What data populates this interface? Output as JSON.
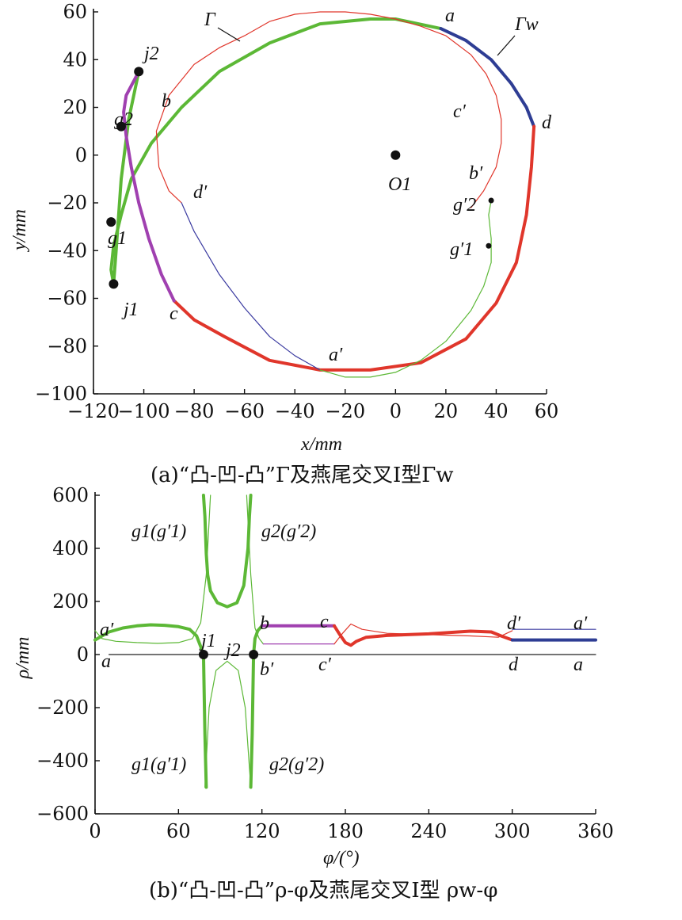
{
  "charts": {
    "a": {
      "caption": "(a)“凸-凹-凸”Γ及燕尾交叉Ⅰ型Γw",
      "xlabel": "x/mm",
      "ylabel": "y/mm",
      "xticks": [
        "−120",
        "−100",
        "−80",
        "−60",
        "−40",
        "−20",
        "0",
        "20",
        "40",
        "60"
      ],
      "yticks": [
        "60",
        "40",
        "20",
        "0",
        "−20",
        "−40",
        "−60",
        "−80",
        "−100"
      ]
    },
    "b": {
      "caption": "(b)“凸-凹-凸”ρ-φ及燕尾交叉Ⅰ型 ρw-φ",
      "xlabel": "φ/(°)",
      "ylabel": "ρ/mm",
      "xticks": [
        "0",
        "60",
        "120",
        "180",
        "240",
        "300",
        "360"
      ],
      "yticks": [
        "600",
        "400",
        "200",
        "0",
        "−200",
        "−400",
        "−600"
      ]
    }
  },
  "chart_data": [
    {
      "type": "line",
      "title": "",
      "xlabel": "x/mm",
      "ylabel": "y/mm",
      "xlim": [
        -120,
        60
      ],
      "ylim": [
        -100,
        60
      ],
      "colors": {
        "green": "#5cb836",
        "blue": "#2e3d94",
        "red": "#e0362b",
        "purple": "#a040b0",
        "thin_red": "#e0362b",
        "thin_blue": "#3a3aa0"
      },
      "annotations": [
        "Γ",
        "Γw",
        "a",
        "d",
        "c′",
        "b′",
        "g′2",
        "g′1",
        "O1",
        "d′",
        "a′",
        "c",
        "b",
        "j2",
        "g2",
        "g1",
        "j1"
      ],
      "points": [
        {
          "name": "O1",
          "x": 0,
          "y": 0
        },
        {
          "name": "j2",
          "x": -102,
          "y": 35
        },
        {
          "name": "g2",
          "x": -109,
          "y": 12
        },
        {
          "name": "g1",
          "x": -113,
          "y": -28
        },
        {
          "name": "j1",
          "x": -112,
          "y": -54
        },
        {
          "name": "g′2",
          "x": 38,
          "y": -19
        },
        {
          "name": "g′1",
          "x": 37,
          "y": -38
        }
      ],
      "series": [
        {
          "role": "Γw green (a→a′ through j2/j1 cusps)",
          "color": "green",
          "x": [
            18,
            0,
            -10,
            -30,
            -50,
            -70,
            -85,
            -97,
            -105,
            -109,
            -112,
            -113,
            -112,
            -111,
            -109,
            -106,
            -102
          ],
          "y": [
            53,
            57,
            57,
            55,
            47,
            35,
            20,
            5,
            -10,
            -25,
            -38,
            -48,
            -54,
            -40,
            -10,
            15,
            35
          ]
        },
        {
          "role": "Γw blue (a→d)",
          "color": "blue",
          "x": [
            18,
            28,
            38,
            46,
            52,
            55
          ],
          "y": [
            53,
            48,
            40,
            30,
            20,
            12
          ]
        },
        {
          "role": "Γw red (d→c)",
          "color": "red",
          "x": [
            55,
            54,
            52,
            48,
            40,
            28,
            10,
            -10,
            -30,
            -50,
            -68,
            -80,
            -88
          ],
          "y": [
            12,
            -5,
            -25,
            -45,
            -62,
            -77,
            -87,
            -90,
            -90,
            -86,
            -76,
            -69,
            -61
          ]
        },
        {
          "role": "Γw purple (c→b)",
          "color": "purple",
          "x": [
            -88,
            -93,
            -98,
            -102,
            -105,
            -107,
            -108,
            -107,
            -104,
            -102
          ],
          "y": [
            -61,
            -50,
            -35,
            -20,
            -5,
            8,
            18,
            25,
            31,
            35
          ]
        },
        {
          "role": "Γ thin red",
          "color": "thin_red",
          "x": [
            -70,
            -60,
            -50,
            -40,
            -30,
            -20,
            -10,
            0,
            10,
            20,
            30,
            36,
            40,
            42,
            42,
            40,
            35,
            30
          ],
          "y": [
            45,
            50,
            56,
            59,
            60,
            60,
            59,
            57,
            54,
            50,
            42,
            34,
            25,
            15,
            5,
            -5,
            -15,
            -22
          ]
        },
        {
          "role": "Γ thin red (left)",
          "color": "thin_red",
          "x": [
            -70,
            -80,
            -90,
            -95,
            -94,
            -90,
            -85
          ],
          "y": [
            45,
            38,
            25,
            10,
            -5,
            -15,
            -20
          ]
        },
        {
          "role": "Γ thin blue",
          "color": "thin_blue",
          "x": [
            -85,
            -80,
            -70,
            -60,
            -50,
            -40,
            -30
          ],
          "y": [
            -20,
            -32,
            -50,
            -64,
            -76,
            -84,
            -90
          ]
        },
        {
          "role": "Γ thin green",
          "color": "green",
          "x": [
            -30,
            -20,
            -10,
            0,
            10,
            20,
            30,
            35,
            38,
            38,
            37,
            38
          ],
          "y": [
            -90,
            -93,
            -93,
            -91,
            -86,
            -78,
            -65,
            -55,
            -45,
            -35,
            -25,
            -19
          ]
        }
      ]
    },
    {
      "type": "line",
      "title": "",
      "xlabel": "φ/(°)",
      "ylabel": "ρ/mm",
      "xlim": [
        0,
        360
      ],
      "ylim": [
        -600,
        600
      ],
      "annotations": [
        "g1(g′1)",
        "g2(g′2)",
        "a′",
        "a",
        "j1",
        "j2",
        "b",
        "b′",
        "c",
        "c′",
        "d′",
        "d",
        "a′",
        "a",
        "g1(g′1)",
        "g2(g′2)"
      ],
      "points": [
        {
          "name": "j1",
          "x": 78,
          "y": 0
        },
        {
          "name": "j2",
          "x": 114,
          "y": 0
        }
      ],
      "series": [
        {
          "role": "ρw green thick A",
          "color": "green",
          "x": [
            0,
            10,
            20,
            30,
            40,
            50,
            60,
            68,
            73,
            76,
            78,
            79,
            80
          ],
          "y": [
            55,
            85,
            100,
            108,
            112,
            110,
            105,
            95,
            70,
            30,
            0,
            -300,
            -500
          ]
        },
        {
          "role": "ρw green thick B",
          "color": "green",
          "x": [
            78,
            79,
            80,
            81,
            83,
            88,
            95,
            102,
            107,
            110,
            111,
            112
          ],
          "y": [
            600,
            520,
            380,
            300,
            240,
            195,
            180,
            195,
            260,
            400,
            520,
            600
          ]
        },
        {
          "role": "ρw green thick C",
          "color": "green",
          "x": [
            112,
            113,
            114,
            115,
            117,
            120
          ],
          "y": [
            -500,
            -300,
            0,
            60,
            90,
            108
          ]
        },
        {
          "role": "ρw purple (b→c)",
          "color": "purple",
          "x": [
            120,
            172
          ],
          "y": [
            108,
            108
          ]
        },
        {
          "role": "ρw red (c→d)",
          "color": "red",
          "x": [
            172,
            176,
            180,
            184,
            188,
            195,
            210,
            240,
            270,
            285,
            292,
            300
          ],
          "y": [
            108,
            75,
            45,
            35,
            50,
            65,
            72,
            78,
            88,
            85,
            70,
            55
          ]
        },
        {
          "role": "ρw blue (d→a)",
          "color": "blue",
          "x": [
            300,
            360
          ],
          "y": [
            55,
            55
          ]
        },
        {
          "role": "ρ thin green",
          "color": "green",
          "x": [
            0,
            5,
            15,
            30,
            45,
            60,
            70,
            76,
            80,
            83
          ],
          "y": [
            90,
            60,
            50,
            45,
            42,
            45,
            60,
            120,
            300,
            600
          ]
        },
        {
          "role": "ρ thin green mid-neg",
          "color": "green",
          "x": [
            79,
            82,
            87,
            95,
            103,
            108,
            112
          ],
          "y": [
            -500,
            -200,
            -60,
            -25,
            -60,
            -200,
            -500
          ]
        },
        {
          "role": "ρ thin green right",
          "color": "green",
          "x": [
            109,
            112,
            115,
            118,
            121
          ],
          "y": [
            600,
            300,
            100,
            60,
            40
          ]
        },
        {
          "role": "ρ thin purple (b′→c′)",
          "color": "purple",
          "x": [
            121,
            172
          ],
          "y": [
            40,
            40
          ]
        },
        {
          "role": "ρ thin red",
          "color": "thin_red",
          "x": [
            172,
            178,
            184,
            192,
            210,
            240,
            270,
            290,
            300
          ],
          "y": [
            40,
            80,
            115,
            95,
            80,
            75,
            70,
            65,
            90
          ]
        },
        {
          "role": "ρ thin blue",
          "color": "thin_blue",
          "x": [
            300,
            360
          ],
          "y": [
            95,
            95
          ]
        },
        {
          "role": "zero line",
          "color": "black",
          "x": [
            10,
            360
          ],
          "y": [
            0,
            0
          ]
        }
      ]
    }
  ]
}
